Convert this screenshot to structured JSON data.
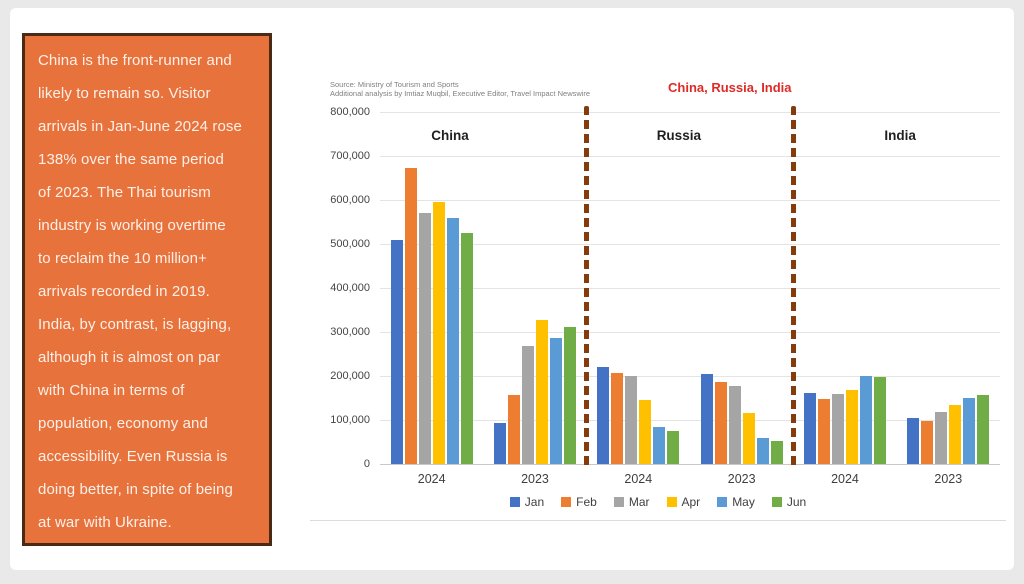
{
  "page": {
    "background": "#e9e9e9",
    "slide_background": "#ffffff"
  },
  "commentary": {
    "text": "China is the front-runner and\nlikely to remain so. Visitor\narrivals in Jan-June 2024 rose\n138% over the same period\nof 2023. The Thai tourism\nindustry is working overtime\nto reclaim the 10 million+\narrivals recorded in 2019.\nIndia, by contrast, is lagging,\nalthough it is almost on par\nwith China in terms of\npopulation, economy and\naccessibility. Even Russia is\ndoing better, in spite of being\nat war with Ukraine.",
    "background": "#e8723c",
    "border_color": "#4a2a15",
    "text_color": "#fdf0e8"
  },
  "chart_data": {
    "type": "bar",
    "title": "China, Russia, India",
    "title_color": "#e02a25",
    "source_line1": "Source: Ministry of Tourism and Sports",
    "source_line2": "Additional analysis by Imtiaz Muqbil, Executive Editor, Travel Impact Newswire",
    "sections": [
      "China",
      "Russia",
      "India"
    ],
    "months": [
      "Jan",
      "Feb",
      "Mar",
      "Apr",
      "May",
      "Jun"
    ],
    "month_colors": [
      "#4472c4",
      "#ed7d31",
      "#a5a5a5",
      "#ffc000",
      "#5b9bd5",
      "#70ad47"
    ],
    "series": [
      {
        "section": "China",
        "year": "2024",
        "values": [
          508000,
          672000,
          570000,
          595000,
          558000,
          525000
        ]
      },
      {
        "section": "China",
        "year": "2023",
        "values": [
          93000,
          156000,
          268000,
          327000,
          286000,
          311000
        ]
      },
      {
        "section": "Russia",
        "year": "2024",
        "values": [
          220000,
          206000,
          200000,
          145000,
          83000,
          74000
        ]
      },
      {
        "section": "Russia",
        "year": "2023",
        "values": [
          204000,
          186000,
          178000,
          117000,
          60000,
          52000
        ]
      },
      {
        "section": "India",
        "year": "2024",
        "values": [
          162000,
          148000,
          159000,
          169000,
          199000,
          198000
        ]
      },
      {
        "section": "India",
        "year": "2023",
        "values": [
          104000,
          98000,
          119000,
          134000,
          149000,
          156000
        ]
      }
    ],
    "ylim": [
      0,
      800000
    ],
    "ytick_step": 100000,
    "grid": true,
    "legend_position": "bottom",
    "divider_color": "#843c0c",
    "ylabel": "",
    "xlabel": ""
  }
}
